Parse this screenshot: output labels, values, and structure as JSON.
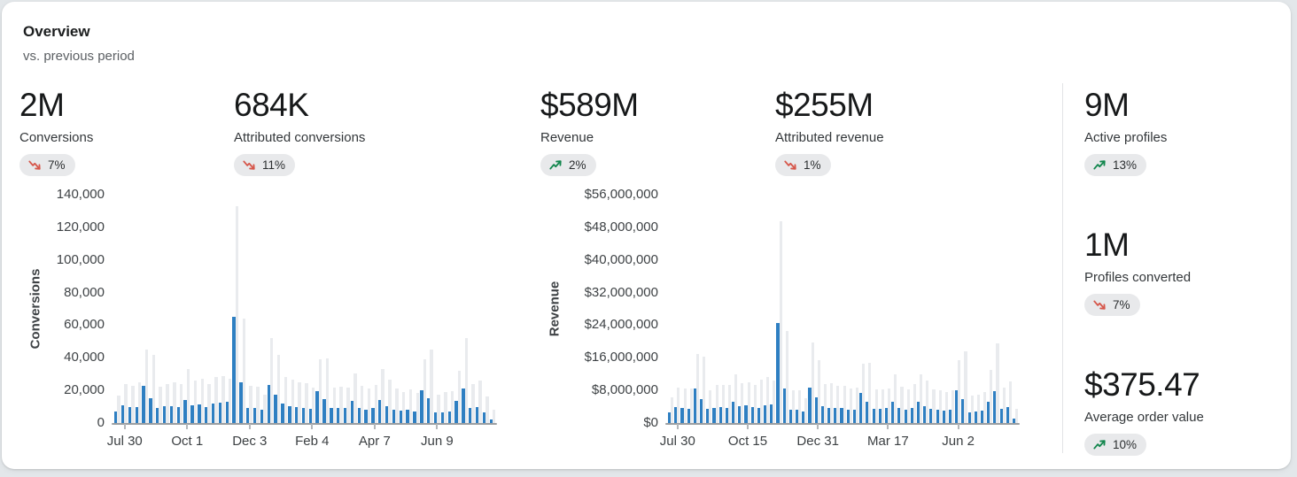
{
  "page": {
    "title": "Overview",
    "subtitle": "vs. previous period"
  },
  "colors": {
    "up": "#12864d",
    "down": "#d6564a",
    "bar_current": "#2e7fc2",
    "bar_previous": "#e9ebee",
    "badge_bg": "#e8e9eb",
    "card_bg": "#ffffff"
  },
  "metrics": [
    {
      "value": "2M",
      "label": "Conversions",
      "delta": "7%",
      "direction": "down"
    },
    {
      "value": "684K",
      "label": "Attributed conversions",
      "delta": "11%",
      "direction": "down"
    },
    {
      "value": "$589M",
      "label": "Revenue",
      "delta": "2%",
      "direction": "up"
    },
    {
      "value": "$255M",
      "label": "Attributed revenue",
      "delta": "1%",
      "direction": "down"
    },
    {
      "value": "9M",
      "label": "Active profiles",
      "delta": "13%",
      "direction": "up"
    },
    {
      "value": "1M",
      "label": "Profiles converted",
      "delta": "7%",
      "direction": "down"
    },
    {
      "value": "$375.47",
      "label": "Average order value",
      "delta": "10%",
      "direction": "up"
    }
  ],
  "chart_data": [
    {
      "type": "bar",
      "title": "Conversions by week, current vs previous period",
      "ylabel": "Conversions",
      "xlabel": "",
      "ylim": [
        0,
        140000
      ],
      "grid": false,
      "legend": "none",
      "yticks": [
        "0",
        "20,000",
        "40,000",
        "60,000",
        "80,000",
        "100,000",
        "120,000",
        "140,000"
      ],
      "xticks": [
        {
          "label": "Jul 30",
          "index": 1
        },
        {
          "label": "Oct 1",
          "index": 10
        },
        {
          "label": "Dec 3",
          "index": 19
        },
        {
          "label": "Feb 4",
          "index": 28
        },
        {
          "label": "Apr 7",
          "index": 37
        },
        {
          "label": "Jun 9",
          "index": 46
        }
      ],
      "series": [
        {
          "name": "current",
          "color": "#2e7fc2",
          "values": [
            7000,
            11000,
            10000,
            10000,
            23000,
            15000,
            9000,
            10500,
            10500,
            10000,
            14000,
            11000,
            11500,
            10000,
            12000,
            12500,
            13000,
            65000,
            25000,
            9000,
            9000,
            8000,
            23500,
            17500,
            12000,
            10500,
            10000,
            9500,
            8500,
            19500,
            14500,
            9500,
            9000,
            9500,
            13500,
            9500,
            8000,
            9000,
            14000,
            10500,
            8000,
            7500,
            8000,
            7000,
            20000,
            15000,
            6500,
            6500,
            7000,
            13500,
            21000,
            9000,
            10000,
            6500,
            2000
          ]
        },
        {
          "name": "previous",
          "color": "#e9ebee",
          "values": [
            17000,
            24000,
            23000,
            25000,
            45000,
            42000,
            22000,
            24000,
            25000,
            24000,
            33000,
            26000,
            27000,
            24000,
            28000,
            29000,
            27000,
            133000,
            64000,
            23000,
            22500,
            17500,
            52000,
            42000,
            28000,
            26500,
            25000,
            24500,
            21500,
            39000,
            39500,
            21500,
            22000,
            21500,
            30500,
            23000,
            21000,
            23500,
            33000,
            26500,
            21000,
            19000,
            20500,
            18500,
            39000,
            45000,
            17500,
            19000,
            19500,
            32000,
            52000,
            24000,
            26000,
            16500,
            8000
          ]
        }
      ]
    },
    {
      "type": "bar",
      "title": "Revenue by week, current vs previous period",
      "ylabel": "Revenue",
      "xlabel": "",
      "ylim": [
        0,
        56000000
      ],
      "grid": false,
      "legend": "none",
      "yticks": [
        "$0",
        "$8,000,000",
        "$16,000,000",
        "$24,000,000",
        "$32,000,000",
        "$40,000,000",
        "$48,000,000",
        "$56,000,000"
      ],
      "xticks": [
        {
          "label": "Jul 30",
          "index": 1
        },
        {
          "label": "Oct 15",
          "index": 12
        },
        {
          "label": "Dec 31",
          "index": 23
        },
        {
          "label": "Mar 17",
          "index": 34
        },
        {
          "label": "Jun 2",
          "index": 45
        }
      ],
      "series": [
        {
          "name": "current",
          "color": "#2e7fc2",
          "values": [
            2500000,
            4000000,
            3700000,
            3500000,
            8500000,
            5800000,
            3500000,
            3800000,
            3900000,
            3800000,
            5300000,
            4200000,
            4300000,
            3900000,
            3800000,
            4400000,
            4600000,
            24500000,
            8500000,
            3200000,
            3300000,
            2800000,
            8700000,
            6200000,
            4200000,
            3700000,
            3700000,
            3600000,
            3300000,
            3200000,
            7300000,
            5300000,
            3500000,
            3500000,
            3600000,
            5300000,
            3700000,
            3200000,
            3700000,
            5200000,
            4200000,
            3400000,
            3200000,
            3000000,
            3200000,
            8000000,
            5800000,
            2700000,
            2800000,
            3000000,
            5300000,
            7800000,
            3500000,
            4000000,
            1000000
          ]
        },
        {
          "name": "previous",
          "color": "#e9ebee",
          "values": [
            6200000,
            8700000,
            8500000,
            8500000,
            17000000,
            16200000,
            8000000,
            9300000,
            9300000,
            9300000,
            12000000,
            9700000,
            10000000,
            9300000,
            10700000,
            11200000,
            10400000,
            49500000,
            22500000,
            8000000,
            8000000,
            6000000,
            19700000,
            15500000,
            9500000,
            9700000,
            9200000,
            9200000,
            8500000,
            8700000,
            14500000,
            14700000,
            8200000,
            8300000,
            8500000,
            12000000,
            9000000,
            8200000,
            9500000,
            12000000,
            10500000,
            8300000,
            8000000,
            7500000,
            8000000,
            15500000,
            17500000,
            6700000,
            7000000,
            7500000,
            13000000,
            19500000,
            8700000,
            10200000,
            3500000
          ]
        }
      ]
    }
  ]
}
